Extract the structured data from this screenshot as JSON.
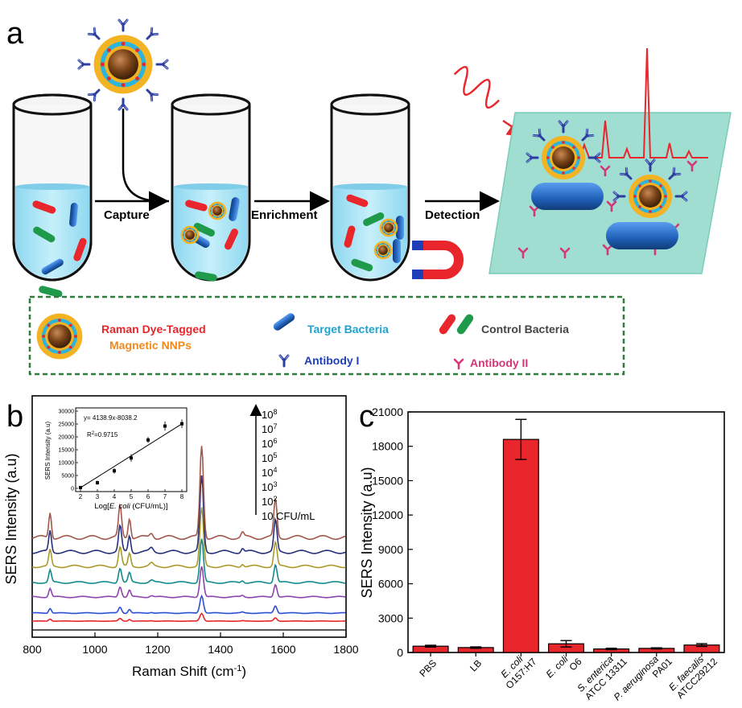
{
  "panel_a": {
    "label": "a",
    "steps": {
      "capture": "Capture",
      "enrichment": "Enrichment",
      "detection": "Detection"
    },
    "legend": {
      "nnp_line1": "Raman Dye-Tagged",
      "nnp_line2": "Magnetic NNPs",
      "target": "Target Bacteria",
      "control": "Control Bacteria",
      "antibody1": "Antibody I",
      "antibody2": "Antibody II"
    },
    "colors": {
      "target_bacteria": "#1f5fb8",
      "control_red": "#e8262b",
      "control_green": "#1f9a4a",
      "antibody1": "#2d3f9e",
      "antibody2": "#d6357a",
      "nnp_shell": "#f4b323",
      "nnp_ring": "#2db4dd",
      "nnp_core": "#6b3a17",
      "liquid": "#a8e3f5",
      "surface": "#9fded0",
      "spectrum": "#e8262b",
      "legend_border": "#2e7d3a"
    }
  },
  "panel_b": {
    "label": "b",
    "ylabel": "SERS Intensity (a.u)",
    "xlabel_main": "Raman Shift (cm",
    "xlabel_sup": "-1",
    "xlabel_end": ")",
    "xticks": [
      "800",
      "1000",
      "1200",
      "1400",
      "1600",
      "1800"
    ],
    "conc_labels": {
      "e8": "8",
      "e7": "7",
      "e6": "6",
      "e5": "5",
      "e4": "4",
      "e3": "3",
      "e2": "2",
      "base": "10",
      "unit": "CFU/mL"
    },
    "spectra_colors": [
      "#222222",
      "#e8262b",
      "#2c4fd8",
      "#8e44ad",
      "#138a8a",
      "#a89a2a",
      "#26307a",
      "#a2574a"
    ],
    "inset": {
      "equation": "y= 4138.9x-8038.2",
      "r2_prefix": "R",
      "r2_sup": "2",
      "r2_value": "=0.9715",
      "ylabel": "SERS Intensity (a.u)",
      "xlabel_pre": "Log[",
      "xlabel_ital": "E. coli",
      "xlabel_post": " (CFU/mL)]",
      "yticks": [
        "0",
        "5000",
        "10000",
        "15000",
        "20000",
        "25000",
        "30000"
      ],
      "xticks": [
        "2",
        "3",
        "4",
        "5",
        "6",
        "7",
        "8"
      ]
    }
  },
  "chart_data": {
    "type": "bar",
    "panel_label": "c",
    "ylabel": "SERS Intensity (a.u)",
    "ylim": [
      0,
      21000
    ],
    "yticks": [
      "0",
      "3000",
      "6000",
      "9000",
      "12000",
      "15000",
      "18000",
      "21000"
    ],
    "categories": [
      {
        "l1": "PBS",
        "l2": "",
        "italic1": ""
      },
      {
        "l1": "LB",
        "l2": "",
        "italic1": ""
      },
      {
        "l1": "E. coli",
        "l2": "O157:H7",
        "italic1": "true"
      },
      {
        "l1": "E. coli",
        "l2": "O6",
        "italic1": "true"
      },
      {
        "l1": "S. enterica",
        "l2": "ATCC 13311",
        "italic1": "true"
      },
      {
        "l1": "P. aeruginosa",
        "l2": "PA01",
        "italic1": "true"
      },
      {
        "l1": "E. faecalis",
        "l2": "ATCC29212",
        "italic1": "true"
      }
    ],
    "values": [
      550,
      430,
      18600,
      760,
      310,
      360,
      650
    ],
    "errors": [
      80,
      60,
      1750,
      280,
      60,
      50,
      120
    ],
    "bar_color": "#e8262b"
  }
}
